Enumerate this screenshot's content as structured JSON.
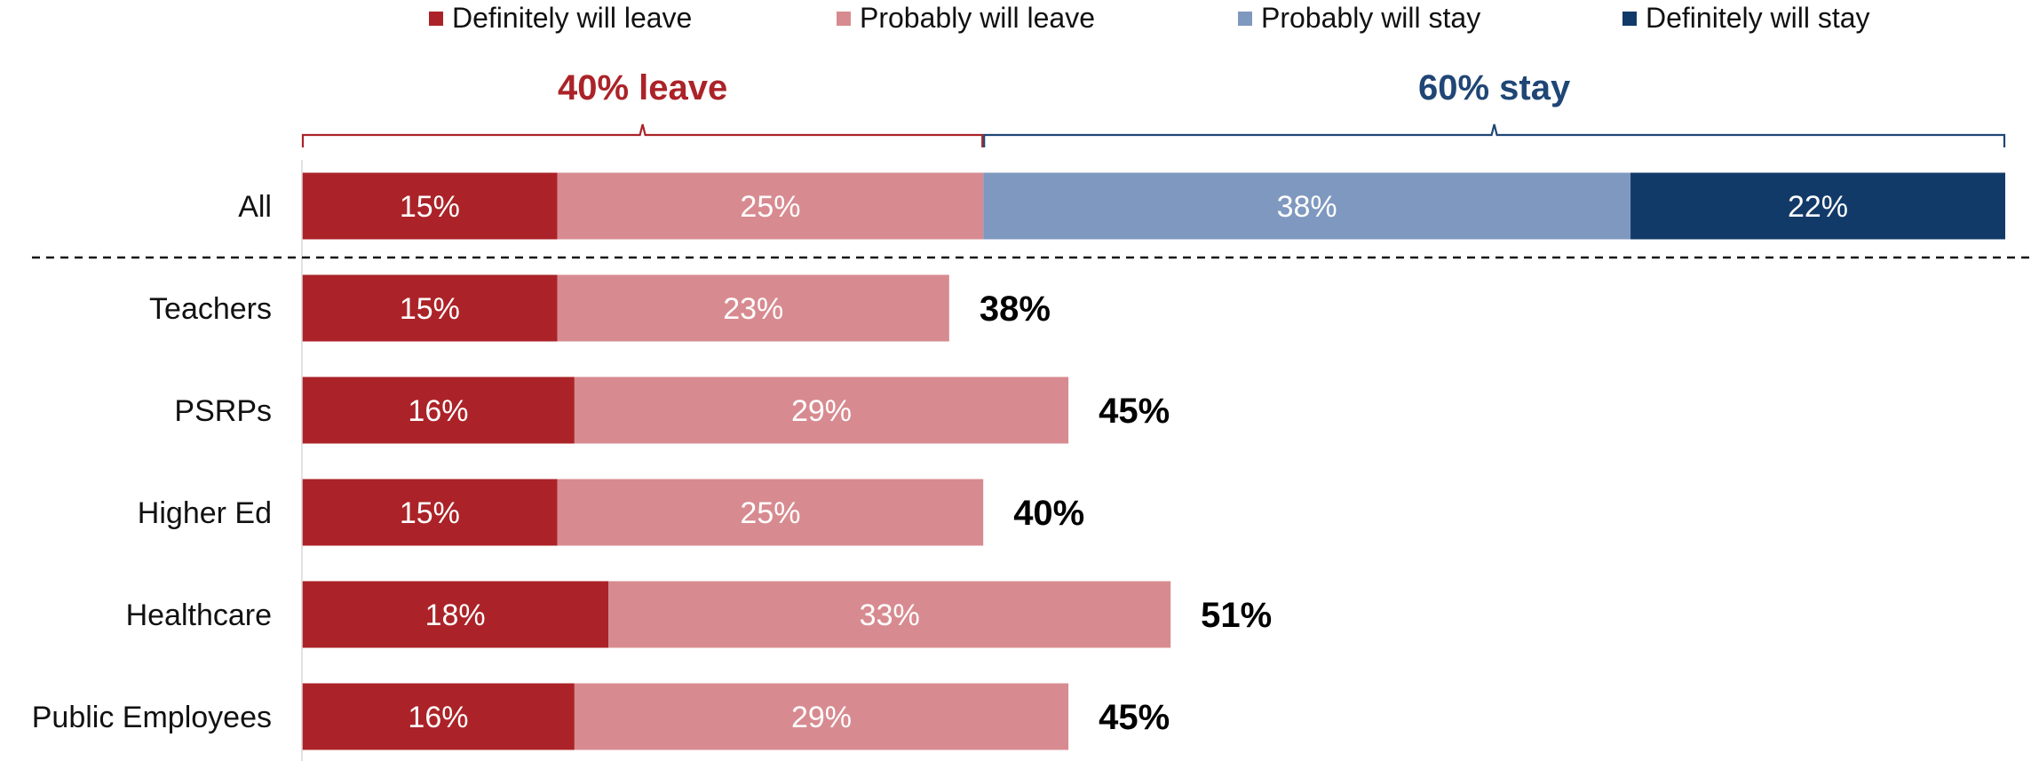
{
  "chart_data": {
    "type": "bar",
    "orientation": "horizontal",
    "stacked": true,
    "categories": [
      "All",
      "Teachers",
      "PSRPs",
      "Higher Ed",
      "Healthcare",
      "Public Employees"
    ],
    "series": [
      {
        "name": "Definitely will leave",
        "color": "#ab2328",
        "values": [
          15,
          15,
          16,
          15,
          18,
          16
        ]
      },
      {
        "name": "Probably will leave",
        "color": "#d78b90",
        "values": [
          25,
          23,
          29,
          25,
          33,
          29
        ]
      },
      {
        "name": "Probably will stay",
        "color": "#7f98bf",
        "values": [
          38,
          null,
          null,
          null,
          null,
          null
        ]
      },
      {
        "name": "Definitely will stay",
        "color": "#123a69",
        "values": [
          22,
          null,
          null,
          null,
          null,
          null
        ]
      }
    ],
    "data_labels": [
      [
        "15%",
        "25%",
        "38%",
        "22%"
      ],
      [
        "15%",
        "23%",
        null,
        null
      ],
      [
        "16%",
        "29%",
        null,
        null
      ],
      [
        "15%",
        "25%",
        null,
        null
      ],
      [
        "18%",
        "33%",
        null,
        null
      ],
      [
        "16%",
        "29%",
        null,
        null
      ]
    ],
    "totals": [
      null,
      "38%",
      "45%",
      "40%",
      "51%",
      "45%"
    ],
    "brackets": [
      {
        "label": "40% leave",
        "from": 0,
        "to": 40,
        "color": "#ab2328"
      },
      {
        "label": "60% stay",
        "from": 40,
        "to": 100,
        "color": "#1f4675"
      }
    ],
    "xlim": [
      0,
      100
    ],
    "legend_position": "top",
    "separator_after_first_row": true
  }
}
